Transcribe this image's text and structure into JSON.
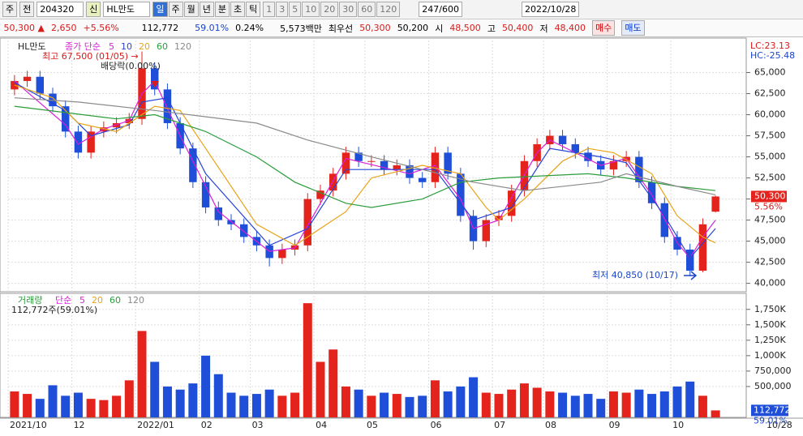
{
  "toolbar": {
    "market": "주",
    "period_type": "전",
    "code": "204320",
    "flag": "신",
    "name": "HL만도",
    "periods": [
      "일",
      "주",
      "월",
      "년",
      "분",
      "초",
      "틱"
    ],
    "intervals": [
      "1",
      "3",
      "5",
      "10",
      "20",
      "30",
      "60",
      "120"
    ],
    "count": "247/600",
    "date": "2022/10/28"
  },
  "quote": {
    "price": "50,300 ▲",
    "change": "2,650",
    "change_pct": "+5.56%",
    "volume": "112,772",
    "volume_ratio": "59.01%",
    "turnover": "0.24%",
    "amount": "5,573백만",
    "best_label": "최우선",
    "ask": "50,300",
    "bid": "50,200",
    "open_label": "시",
    "open": "48,500",
    "high_label": "고",
    "high": "50,400",
    "low_label": "저",
    "low": "48,400",
    "buy": "매수",
    "sell": "매도"
  },
  "chart_data": [
    {
      "type": "candlestick",
      "title": "HL만도",
      "indicator": "종가 단순",
      "up_color": "#e3231c",
      "down_color": "#1f4fd8",
      "open": [
        63000,
        64000,
        64500,
        62500,
        61000,
        58000,
        55500,
        58000,
        58500,
        59000,
        59500,
        65500,
        63000,
        59000,
        56000,
        52000,
        49000,
        47500,
        47000,
        45500,
        44500,
        43000,
        44000,
        44500,
        50000,
        51000,
        53000,
        55500,
        54500,
        54500,
        53500,
        54000,
        52500,
        52000,
        55500,
        53000,
        48000,
        45000,
        47500,
        48000,
        51000,
        54500,
        56500,
        57500,
        56500,
        55500,
        54500,
        53500,
        54500,
        55000,
        52000,
        49500,
        45500,
        44000,
        41500,
        48500
      ],
      "high": [
        64700,
        65200,
        65200,
        63200,
        61700,
        58700,
        58700,
        59200,
        59700,
        60200,
        67500,
        66200,
        63700,
        59700,
        56700,
        52700,
        49700,
        48200,
        47700,
        46200,
        45200,
        44700,
        45200,
        50700,
        51700,
        53700,
        56200,
        56200,
        55200,
        55200,
        54700,
        54700,
        53200,
        56200,
        56200,
        53700,
        48700,
        48200,
        48700,
        51700,
        55200,
        57200,
        58200,
        58200,
        57200,
        56200,
        55200,
        55200,
        55700,
        55700,
        52700,
        50200,
        46200,
        44700,
        47700,
        50400
      ],
      "low": [
        62300,
        63300,
        61800,
        60300,
        57300,
        54800,
        54800,
        57300,
        57800,
        58300,
        58800,
        62300,
        58300,
        55300,
        51300,
        48300,
        46800,
        46300,
        44800,
        43800,
        42000,
        42300,
        43300,
        43800,
        49300,
        50300,
        52300,
        53800,
        53800,
        52800,
        52800,
        51800,
        51300,
        51300,
        52300,
        47300,
        44000,
        44300,
        46800,
        47300,
        50300,
        53800,
        55800,
        55800,
        54800,
        53800,
        52800,
        52800,
        53800,
        51300,
        48800,
        44800,
        43300,
        40850,
        41300,
        48400
      ],
      "close": [
        64000,
        64500,
        62500,
        61000,
        58000,
        55500,
        58000,
        58500,
        59000,
        59500,
        65500,
        63000,
        59000,
        56000,
        52000,
        49000,
        47500,
        47000,
        45500,
        44500,
        43000,
        44000,
        44500,
        50000,
        51000,
        53000,
        55500,
        54500,
        54500,
        53500,
        54000,
        52500,
        52000,
        55500,
        53000,
        48000,
        45000,
        47500,
        48000,
        51000,
        54500,
        56500,
        57500,
        56500,
        55500,
        54500,
        53500,
        54500,
        55000,
        52000,
        49500,
        45500,
        44000,
        41500,
        47000,
        50300
      ],
      "series": [
        {
          "name": "5",
          "color": "#d81fd8",
          "x": [
            0,
            4,
            5,
            7,
            9,
            10,
            11,
            13,
            16,
            20,
            22,
            24,
            26,
            31,
            33,
            35,
            36,
            38,
            41,
            42,
            46,
            48,
            50,
            52,
            53,
            54,
            55
          ],
          "values": [
            64000,
            58800,
            56500,
            58300,
            59300,
            62500,
            64000,
            57500,
            48500,
            43800,
            44200,
            49500,
            54800,
            53000,
            54000,
            50000,
            46500,
            47500,
            55500,
            57000,
            54000,
            54800,
            50500,
            44800,
            43000,
            45500,
            47500
          ]
        },
        {
          "name": "10",
          "color": "#2443d8",
          "x": [
            0,
            4,
            6,
            9,
            10,
            12,
            15,
            20,
            23,
            26,
            30,
            33,
            36,
            39,
            42,
            46,
            48,
            51,
            53,
            55
          ],
          "values": [
            63800,
            60500,
            57500,
            58800,
            61500,
            62000,
            53000,
            44500,
            46500,
            53500,
            53500,
            53500,
            47500,
            49000,
            56000,
            55000,
            54300,
            48000,
            43000,
            46500
          ]
        },
        {
          "name": "20",
          "color": "#e8a317",
          "x": [
            0,
            3,
            5,
            8,
            11,
            13,
            15,
            19,
            22,
            23,
            26,
            28,
            32,
            35,
            37,
            38,
            40,
            43,
            45,
            47,
            50,
            52,
            54,
            55
          ],
          "values": [
            63500,
            62000,
            59000,
            58000,
            61000,
            60500,
            56000,
            47000,
            44500,
            45500,
            48500,
            52500,
            54000,
            53000,
            49000,
            47500,
            50000,
            54500,
            56000,
            55500,
            53000,
            48000,
            45500,
            44800
          ]
        },
        {
          "name": "60",
          "color": "#2a9d3a",
          "x": [
            0,
            8,
            11,
            15,
            19,
            22,
            26,
            28,
            32,
            35,
            38,
            45,
            48,
            52,
            55
          ],
          "values": [
            61000,
            59500,
            60000,
            58000,
            55000,
            52000,
            49500,
            49000,
            50000,
            52000,
            52500,
            53000,
            52500,
            51500,
            51000
          ]
        },
        {
          "name": "120",
          "color": "#8a8a8a",
          "x": [
            0,
            5,
            11,
            19,
            23,
            28,
            32,
            36,
            40,
            46,
            48,
            52,
            55
          ],
          "values": [
            62000,
            61500,
            60500,
            59000,
            57000,
            55000,
            53500,
            52000,
            51000,
            52000,
            53000,
            51500,
            50500
          ]
        }
      ],
      "ylim": [
        39000,
        68800
      ],
      "yticks": [
        {
          "value": 40000,
          "label": "40,000"
        },
        {
          "value": 42500,
          "label": "42,500"
        },
        {
          "value": 45000,
          "label": "45,000"
        },
        {
          "value": 47500,
          "label": "47,500"
        },
        {
          "value": 50000,
          "label": "50,000"
        },
        {
          "value": 52500,
          "label": "52,500"
        },
        {
          "value": 55000,
          "label": "55,000"
        },
        {
          "value": 57500,
          "label": "57,500"
        },
        {
          "value": 60000,
          "label": "60,000"
        },
        {
          "value": 62500,
          "label": "62,500"
        },
        {
          "value": 65000,
          "label": "65,000"
        }
      ],
      "grid": true,
      "annotations": {
        "high": "최고 67,500 (01/05) →",
        "dividend": "배당락(0.00%)",
        "low": "최저 40,850 (10/17)",
        "lc": "LC:23.13",
        "hc": "HC:-25.48",
        "last_price": "50,300",
        "last_pct": "5.56%"
      }
    },
    {
      "type": "bar",
      "title": "거래량",
      "indicator": "단순",
      "info": "112,772주(59.01%)",
      "legend": [
        {
          "name": "5",
          "color": "#d81fd8"
        },
        {
          "name": "20",
          "color": "#e8a317"
        },
        {
          "name": "60",
          "color": "#2a9d3a"
        },
        {
          "name": "120",
          "color": "#8a8a8a"
        }
      ],
      "categories": [
        "2021/10",
        null,
        null,
        null,
        null,
        "12",
        null,
        null,
        null,
        null,
        "2022/01",
        null,
        null,
        null,
        null,
        "02",
        null,
        null,
        null,
        "03",
        null,
        null,
        null,
        null,
        "04",
        null,
        null,
        null,
        "05",
        null,
        null,
        null,
        null,
        "06",
        null,
        null,
        null,
        null,
        "07",
        null,
        null,
        null,
        "08",
        null,
        null,
        null,
        null,
        "09",
        null,
        null,
        null,
        null,
        "10",
        null,
        null,
        null
      ],
      "values": [
        420000,
        380000,
        300000,
        520000,
        350000,
        400000,
        300000,
        280000,
        350000,
        600000,
        1400000,
        900000,
        500000,
        450000,
        550000,
        1000000,
        700000,
        400000,
        350000,
        380000,
        450000,
        350000,
        400000,
        1850000,
        900000,
        1100000,
        500000,
        450000,
        350000,
        400000,
        380000,
        330000,
        350000,
        600000,
        420000,
        500000,
        650000,
        400000,
        380000,
        450000,
        550000,
        480000,
        420000,
        400000,
        350000,
        380000,
        300000,
        420000,
        400000,
        450000,
        380000,
        420000,
        500000,
        580000,
        350000,
        112772
      ],
      "ylim": [
        0,
        1970000
      ],
      "yticks": [
        {
          "value": 500000,
          "label": "500,000"
        },
        {
          "value": 750000,
          "label": "750,000"
        },
        {
          "value": 1000000,
          "label": "1,000K"
        },
        {
          "value": 1250000,
          "label": "1,250K"
        },
        {
          "value": 1500000,
          "label": "1,500K"
        },
        {
          "value": 1750000,
          "label": "1,750K"
        }
      ],
      "grid": true,
      "last_label": "112,772",
      "last_pct": "59.01%",
      "end_label": "10/28"
    }
  ]
}
